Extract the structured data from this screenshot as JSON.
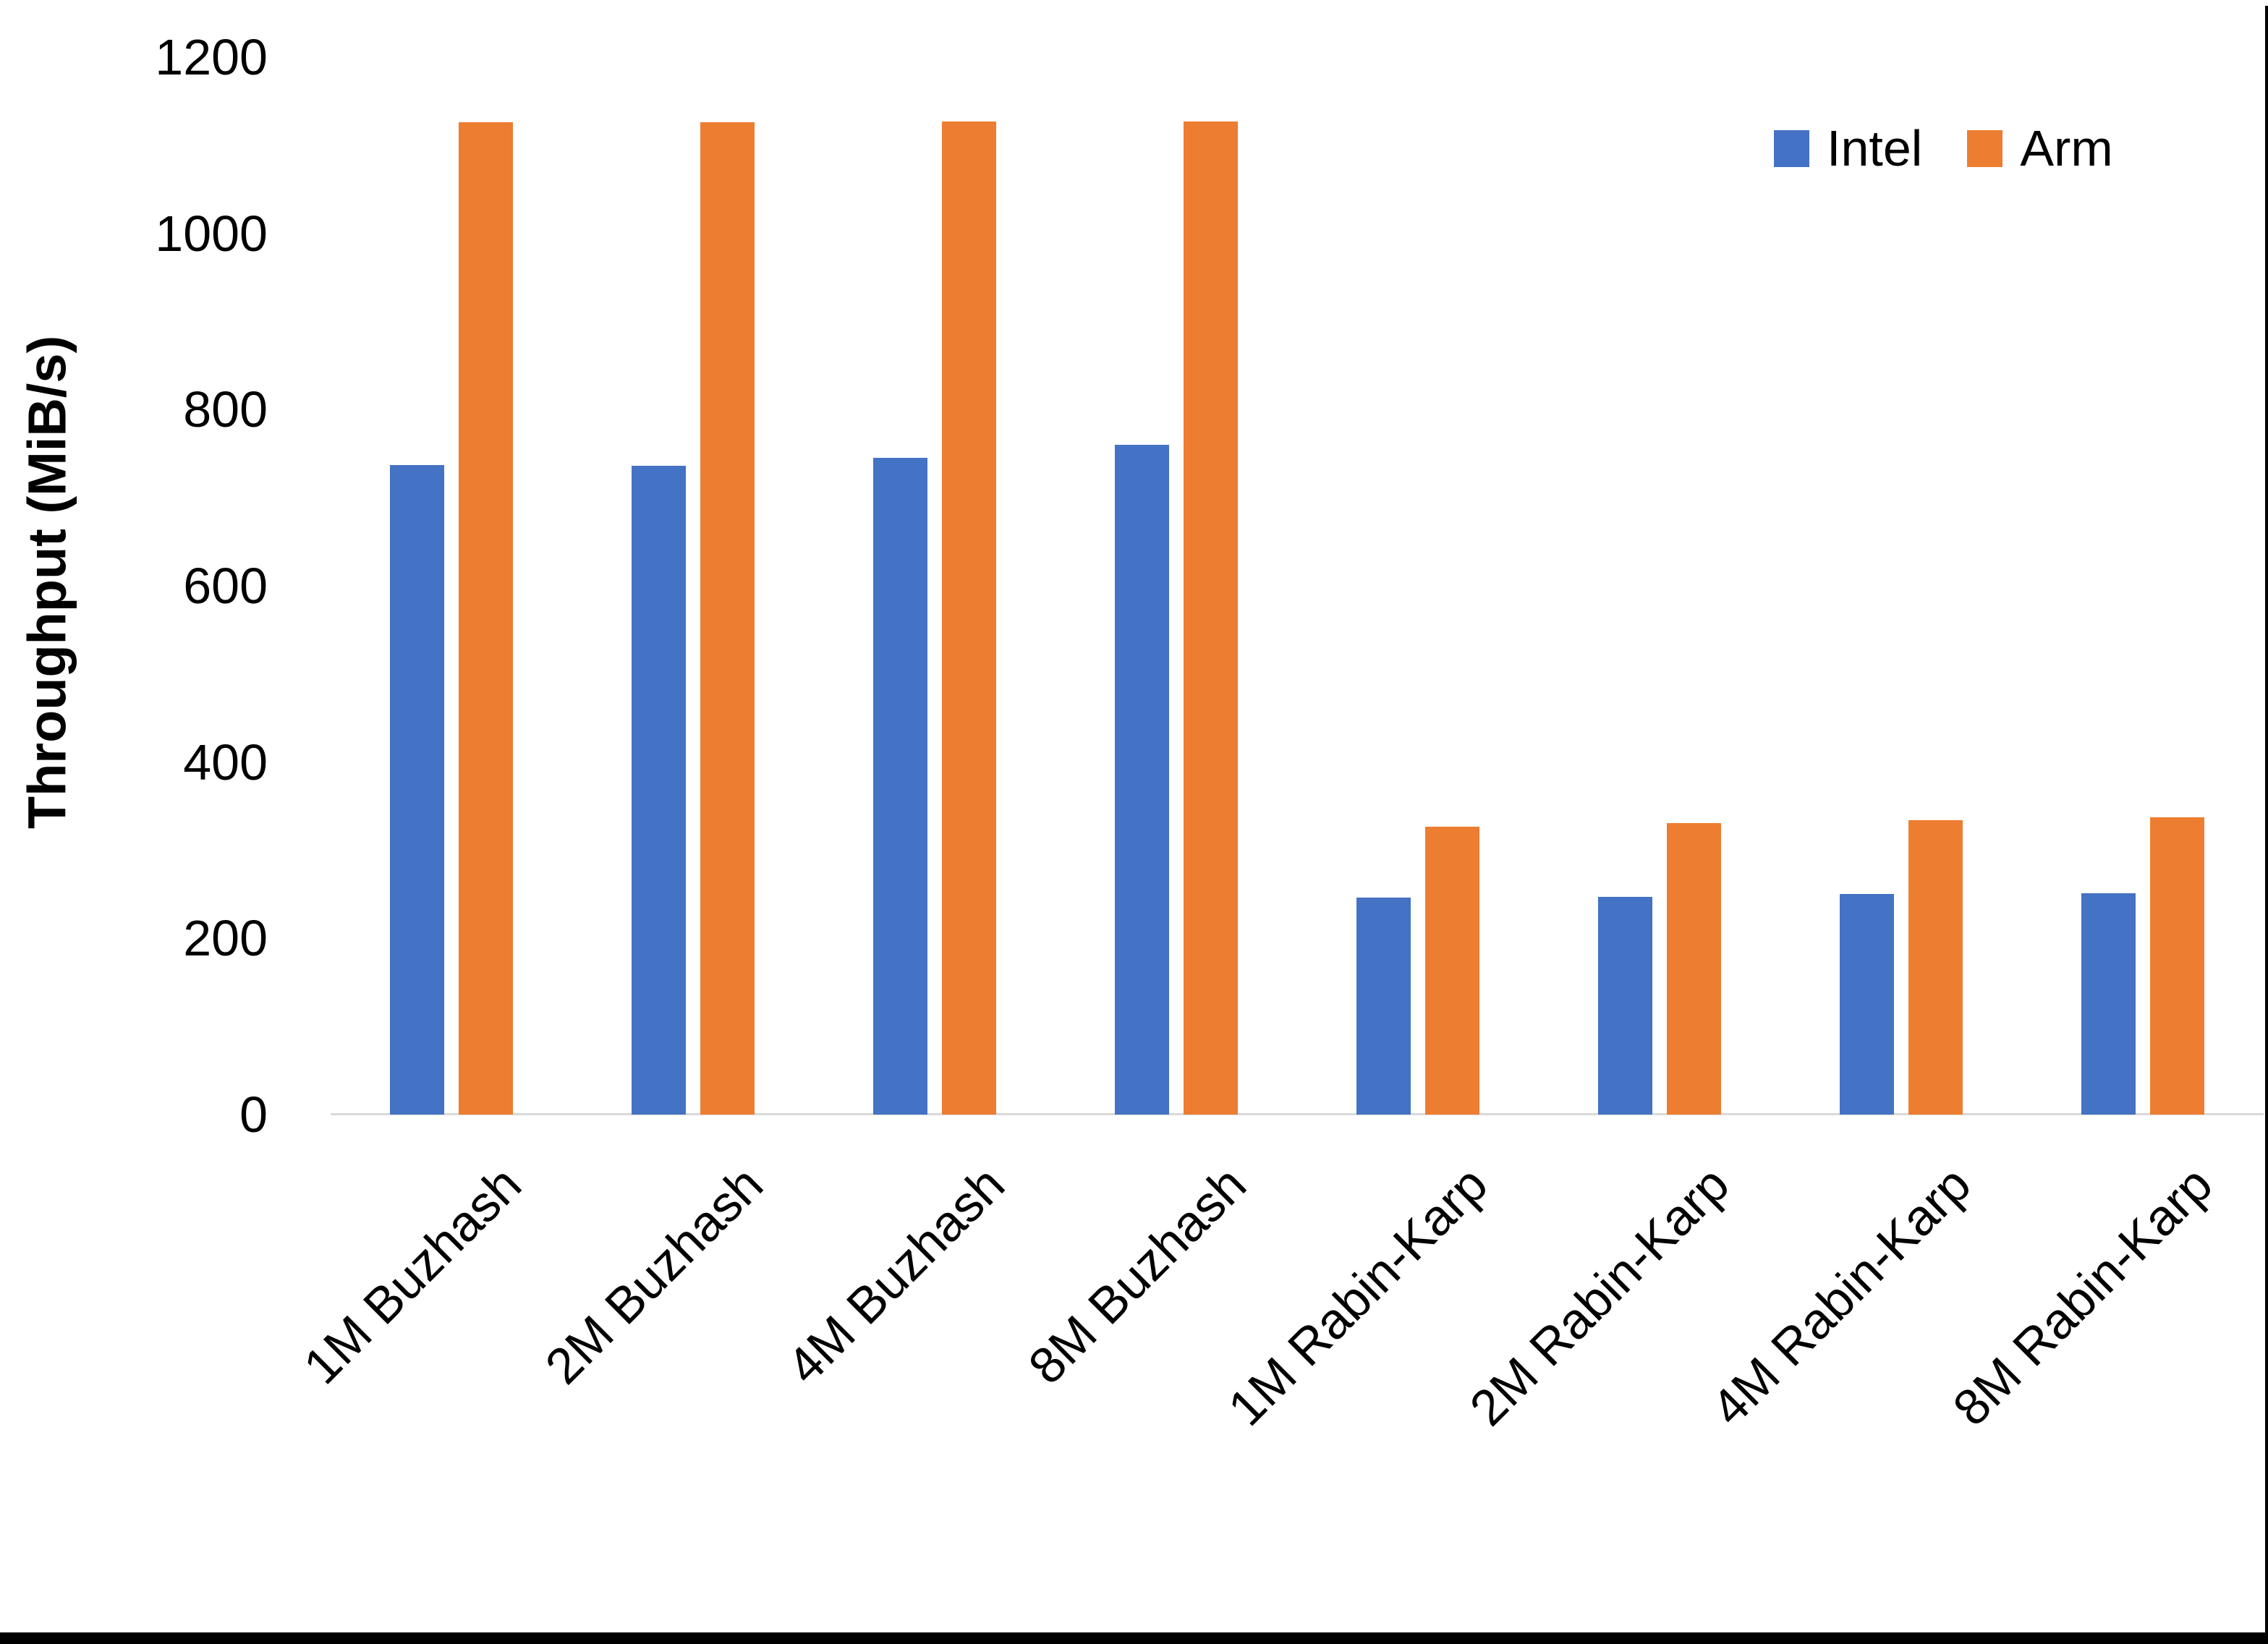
{
  "chart_data": {
    "type": "bar",
    "title": "",
    "xlabel": "",
    "ylabel": "Throughput (MiB/s)",
    "ylim": [
      0,
      1200
    ],
    "yticks": [
      0,
      200,
      400,
      600,
      800,
      1000,
      1200
    ],
    "grid": false,
    "legend_position": "top-right",
    "categories": [
      "1M Buzhash",
      "2M Buzhash",
      "4M Buzhash",
      "8M Buzhash",
      "1M Rabin-Karp",
      "2M Rabin-Karp",
      "4M Rabin-Karp",
      "8M Rabin-Karp"
    ],
    "series": [
      {
        "name": "Intel",
        "color": "#4472C4",
        "values": [
          737,
          736,
          745,
          760,
          246,
          247,
          250,
          251
        ]
      },
      {
        "name": "Arm",
        "color": "#ED7D31",
        "values": [
          1126,
          1126,
          1127,
          1127,
          327,
          331,
          334,
          337
        ]
      }
    ],
    "axis_line_color": "#D9D9D9",
    "text_color": "#000000",
    "background_color": "#FFFFFF"
  }
}
